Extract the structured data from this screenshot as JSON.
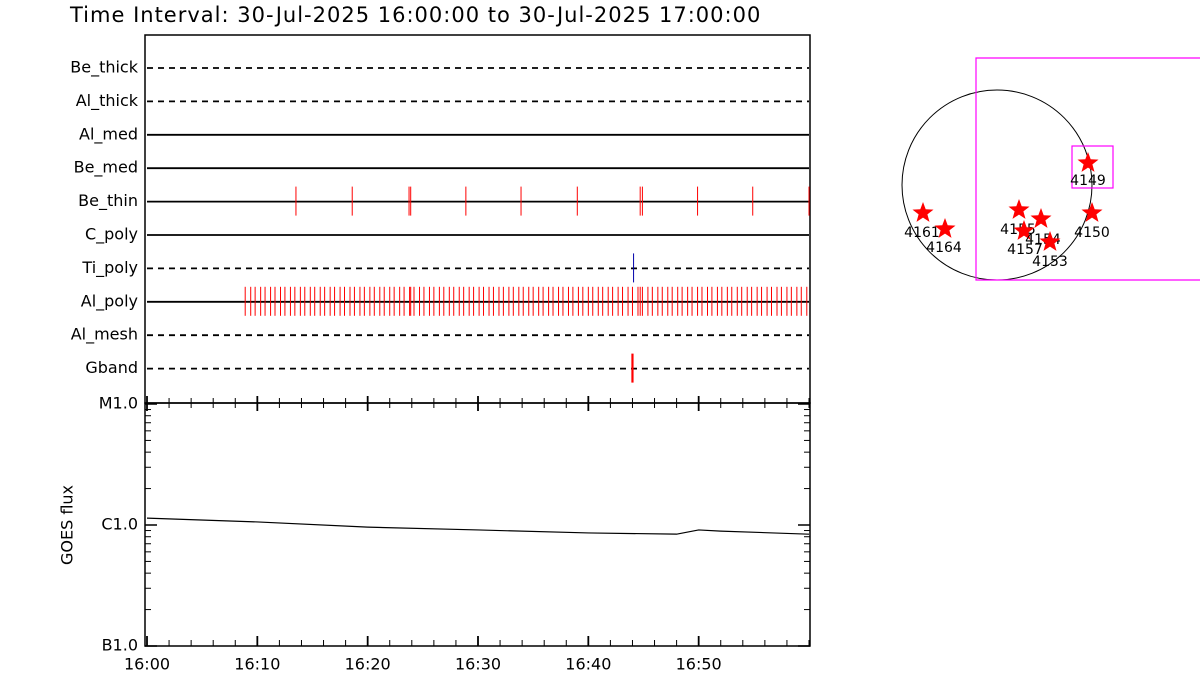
{
  "title": "Time Interval: 30-Jul-2025 16:00:00 to 30-Jul-2025 17:00:00",
  "chart_data": [
    {
      "type": "timeline",
      "categories": [
        "Be_thick",
        "Al_thick",
        "Al_med",
        "Be_med",
        "Be_thin",
        "C_poly",
        "Ti_poly",
        "Al_poly",
        "Al_mesh",
        "Gband"
      ],
      "line_styles": [
        "dashed",
        "dashed",
        "solid",
        "solid",
        "solid",
        "solid",
        "dashed",
        "solid",
        "dashed",
        "dashed"
      ],
      "xlim": [
        0,
        60
      ],
      "events": [
        {
          "x": []
        },
        {
          "x": []
        },
        {
          "x": []
        },
        {
          "x": []
        },
        {
          "x": [
            13.5,
            18.6,
            23.75,
            23.9,
            28.9,
            33.9,
            39.0,
            44.7,
            44.9,
            49.9,
            54.9,
            60.0
          ],
          "color": "#ff0000"
        },
        {
          "x": []
        },
        {
          "x": [
            44.1
          ],
          "color": "#0000aa"
        },
        {
          "x": [
            8.9,
            9.4,
            9.8,
            10.3,
            10.7,
            11.2,
            11.6,
            12.1,
            12.5,
            13.0,
            13.4,
            13.9,
            14.3,
            14.8,
            15.2,
            15.7,
            16.1,
            16.6,
            17.0,
            17.5,
            17.9,
            18.4,
            18.8,
            19.3,
            19.7,
            20.2,
            20.6,
            21.1,
            21.5,
            22.0,
            22.4,
            22.9,
            23.3,
            23.8,
            23.9,
            24.2,
            24.7,
            25.1,
            25.6,
            26.0,
            26.5,
            26.9,
            27.4,
            27.8,
            28.3,
            28.7,
            29.2,
            29.6,
            30.1,
            30.5,
            31.0,
            31.4,
            31.9,
            32.3,
            32.8,
            33.2,
            33.7,
            34.1,
            34.6,
            35.0,
            35.5,
            35.9,
            36.4,
            36.8,
            37.3,
            37.7,
            38.2,
            38.6,
            39.1,
            39.5,
            40.0,
            40.4,
            40.9,
            41.3,
            41.8,
            42.2,
            42.7,
            43.1,
            43.6,
            44.0,
            44.5,
            44.7,
            44.9,
            45.4,
            45.8,
            46.3,
            46.7,
            47.2,
            47.6,
            48.1,
            48.5,
            49.0,
            49.4,
            49.9,
            50.3,
            50.8,
            51.2,
            51.7,
            52.1,
            52.6,
            53.0,
            53.5,
            53.9,
            54.4,
            54.8,
            55.3,
            55.7,
            56.2,
            56.6,
            57.1,
            57.5,
            58.0,
            58.4,
            58.9,
            59.3,
            59.8
          ],
          "color": "#ff0000"
        },
        {
          "x": []
        },
        {
          "x": [
            44.0
          ],
          "color": "#ff0000"
        }
      ]
    },
    {
      "type": "line",
      "ylabel": "GOES flux",
      "x": [
        0,
        10,
        20,
        30,
        40,
        48,
        50,
        52,
        60
      ],
      "values": [
        1.14e-06,
        1.06e-06,
        9.6e-07,
        9.1e-07,
        8.6e-07,
        8.4e-07,
        9.1e-07,
        8.9e-07,
        8.4e-07
      ],
      "color": "#000000",
      "log_y": true,
      "xlim": [
        0,
        60
      ],
      "xticks": [
        {
          "value": 0,
          "label": "16:00"
        },
        {
          "value": 10,
          "label": "16:10"
        },
        {
          "value": 20,
          "label": "16:20"
        },
        {
          "value": 30,
          "label": "16:30"
        },
        {
          "value": 40,
          "label": "16:40"
        },
        {
          "value": 50,
          "label": "16:50"
        }
      ],
      "ylim": [
        1e-07,
        1e-05
      ],
      "yticks": [
        {
          "value": 1e-07,
          "label": "B1.0"
        },
        {
          "value": 1e-06,
          "label": "C1.0"
        },
        {
          "value": 1e-05,
          "label": "M1.0"
        }
      ]
    }
  ],
  "map": {
    "labels": [
      "4161",
      "4164",
      "4155",
      "4157",
      "4154",
      "4153",
      "4149",
      "4150"
    ]
  }
}
